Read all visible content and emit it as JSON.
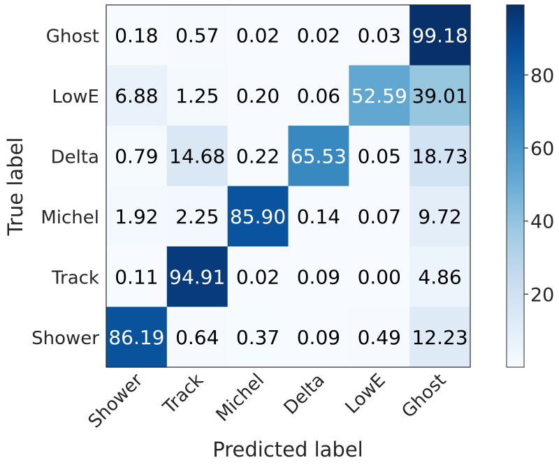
{
  "chart_data": {
    "type": "heatmap",
    "title": "",
    "xlabel": "Predicted label",
    "ylabel": "True label",
    "x_categories": [
      "Shower",
      "Track",
      "Michel",
      "Delta",
      "LowE",
      "Ghost"
    ],
    "y_categories": [
      "Ghost",
      "LowE",
      "Delta",
      "Michel",
      "Track",
      "Shower"
    ],
    "values": [
      [
        0.18,
        0.57,
        0.02,
        0.02,
        0.03,
        99.18
      ],
      [
        6.88,
        1.25,
        0.2,
        0.06,
        52.59,
        39.01
      ],
      [
        0.79,
        14.68,
        0.22,
        65.53,
        0.05,
        18.73
      ],
      [
        1.92,
        2.25,
        85.9,
        0.14,
        0.07,
        9.72
      ],
      [
        0.11,
        94.91,
        0.02,
        0.09,
        0.0,
        4.86
      ],
      [
        86.19,
        0.64,
        0.37,
        0.09,
        0.49,
        12.23
      ]
    ],
    "value_labels": [
      [
        "0.18",
        "0.57",
        "0.02",
        "0.02",
        "0.03",
        "99.18"
      ],
      [
        "6.88",
        "1.25",
        "0.20",
        "0.06",
        "52.59",
        "39.01"
      ],
      [
        "0.79",
        "14.68",
        "0.22",
        "65.53",
        "0.05",
        "18.73"
      ],
      [
        "1.92",
        "2.25",
        "85.90",
        "0.14",
        "0.07",
        "9.72"
      ],
      [
        "0.11",
        "94.91",
        "0.02",
        "0.09",
        "0.00",
        "4.86"
      ],
      [
        "86.19",
        "0.64",
        "0.37",
        "0.09",
        "0.49",
        "12.23"
      ]
    ],
    "colormap": "Blues",
    "color_range": [
      0,
      99.18
    ],
    "colorbar_ticks": [
      20,
      40,
      60,
      80
    ],
    "colorbar_tick_labels": [
      "20",
      "40",
      "60",
      "80"
    ]
  }
}
